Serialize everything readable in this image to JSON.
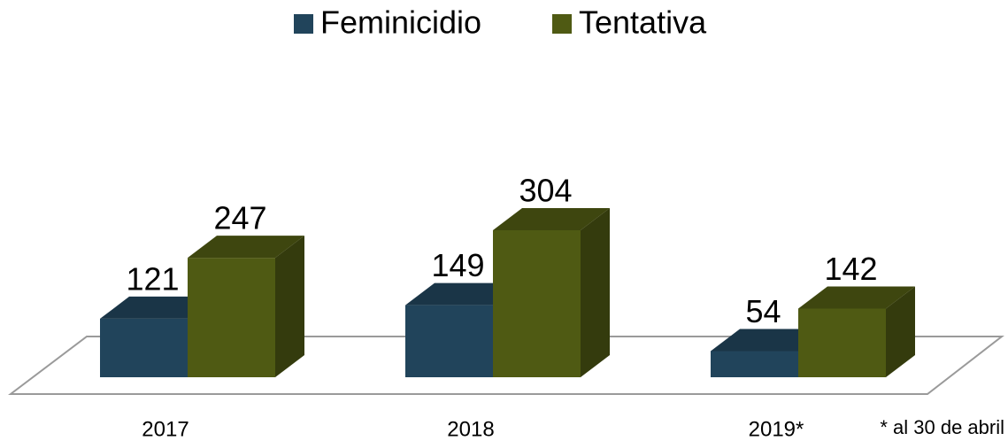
{
  "chart_data": {
    "type": "bar3d",
    "categories": [
      "2017",
      "2018",
      "2019*"
    ],
    "series": [
      {
        "name": "Feminicidio",
        "color": "#21445b",
        "values": [
          121,
          149,
          54
        ]
      },
      {
        "name": "Tentativa",
        "color": "#4f5a13",
        "values": [
          247,
          304,
          142
        ]
      }
    ],
    "annotation": "* al 30 de abril"
  }
}
